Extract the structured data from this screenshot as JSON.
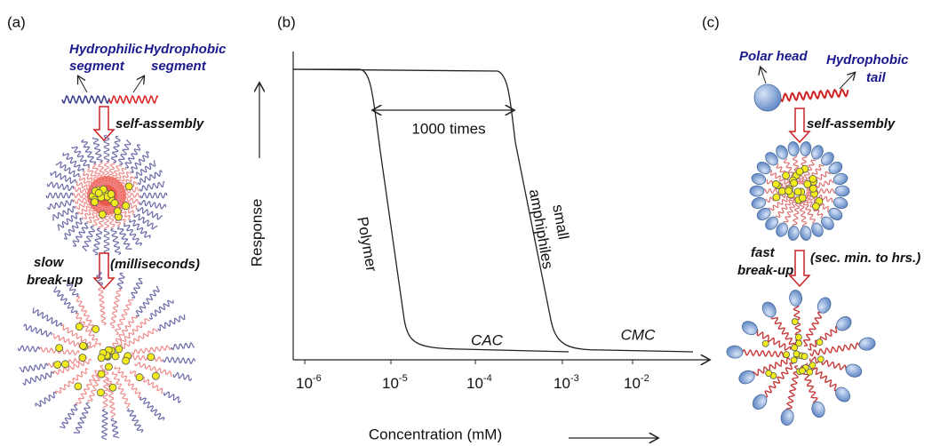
{
  "panel_a": {
    "label": "(a)",
    "hydrophilic": [
      "Hydrophilic",
      "segment"
    ],
    "hydrophobic": [
      "Hydrophobic",
      "segment"
    ],
    "assembly": "self-assembly",
    "breakup": [
      "slow",
      "break-up"
    ],
    "time": "(milliseconds)"
  },
  "panel_b": {
    "label": "(b)",
    "y_axis_label": "Response",
    "x_axis_label": "Concentration (mM)",
    "x_ticks": [
      {
        "base": "10",
        "exp": "-6"
      },
      {
        "base": "10",
        "exp": "-5"
      },
      {
        "base": "10",
        "exp": "-4"
      },
      {
        "base": "10",
        "exp": "-3"
      },
      {
        "base": "10",
        "exp": "-2"
      }
    ],
    "span_label": "1000 times",
    "polymer": "Polymer",
    "small": [
      "small",
      "amphiphiles"
    ],
    "cac": "CAC",
    "cmc": "CMC"
  },
  "panel_c": {
    "label": "(c)",
    "polar_head": "Polar head",
    "tail": [
      "Hydrophobic",
      "tail"
    ],
    "assembly": "self-assembly",
    "breakup": [
      "fast",
      "break-up"
    ],
    "time": "(sec. min. to hrs.)"
  }
}
